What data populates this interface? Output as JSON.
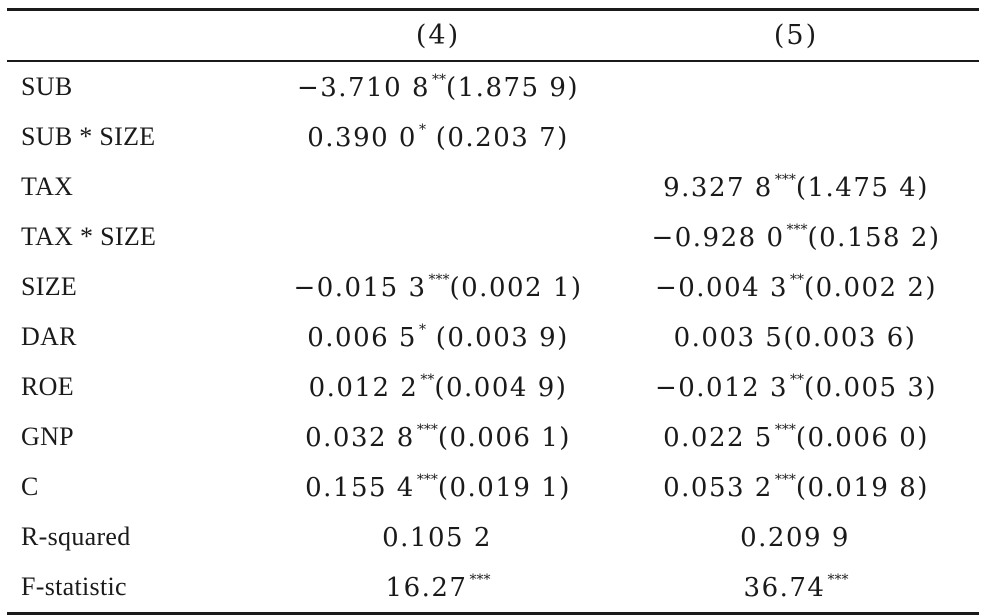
{
  "columns": [
    "",
    "(4)",
    "(5)"
  ],
  "rows": [
    {
      "label": "SUB",
      "c4": {
        "coef": "−3.710 8",
        "stars": "**",
        "se": "(1.875 9)"
      },
      "c5": {
        "coef": "",
        "stars": "",
        "se": ""
      }
    },
    {
      "label": "SUB * SIZE",
      "c4": {
        "coef": "0.390 0",
        "stars": "*",
        "se": " (0.203 7)"
      },
      "c5": {
        "coef": "",
        "stars": "",
        "se": ""
      }
    },
    {
      "label": "TAX",
      "c4": {
        "coef": "",
        "stars": "",
        "se": ""
      },
      "c5": {
        "coef": "9.327 8",
        "stars": "***",
        "se": "(1.475 4)"
      }
    },
    {
      "label": "TAX * SIZE",
      "c4": {
        "coef": "",
        "stars": "",
        "se": ""
      },
      "c5": {
        "coef": "−0.928 0",
        "stars": "***",
        "se": "(0.158 2)"
      }
    },
    {
      "label": "SIZE",
      "c4": {
        "coef": "−0.015 3",
        "stars": "***",
        "se": "(0.002 1)"
      },
      "c5": {
        "coef": "−0.004 3",
        "stars": "**",
        "se": "(0.002 2)"
      }
    },
    {
      "label": "DAR",
      "c4": {
        "coef": "0.006 5",
        "stars": "*",
        "se": " (0.003 9)"
      },
      "c5": {
        "coef": "0.003 5(0.003 6)",
        "stars": "",
        "se": ""
      }
    },
    {
      "label": "ROE",
      "c4": {
        "coef": "0.012 2",
        "stars": "**",
        "se": "(0.004 9)"
      },
      "c5": {
        "coef": "−0.012 3",
        "stars": "**",
        "se": "(0.005 3)"
      }
    },
    {
      "label": "GNP",
      "c4": {
        "coef": "0.032 8",
        "stars": "***",
        "se": "(0.006 1)"
      },
      "c5": {
        "coef": "0.022 5",
        "stars": "***",
        "se": "(0.006 0)"
      }
    },
    {
      "label": "C",
      "c4": {
        "coef": "0.155 4",
        "stars": "***",
        "se": "(0.019 1)"
      },
      "c5": {
        "coef": "0.053 2",
        "stars": "***",
        "se": "(0.019 8)"
      }
    },
    {
      "label": "R-squared",
      "c4": {
        "coef": "0.105 2",
        "stars": "",
        "se": ""
      },
      "c5": {
        "coef": "0.209 9",
        "stars": "",
        "se": ""
      }
    },
    {
      "label": "F-statistic",
      "c4": {
        "coef": "16.27",
        "stars": "***",
        "se": ""
      },
      "c5": {
        "coef": "36.74",
        "stars": "***",
        "se": ""
      }
    }
  ]
}
